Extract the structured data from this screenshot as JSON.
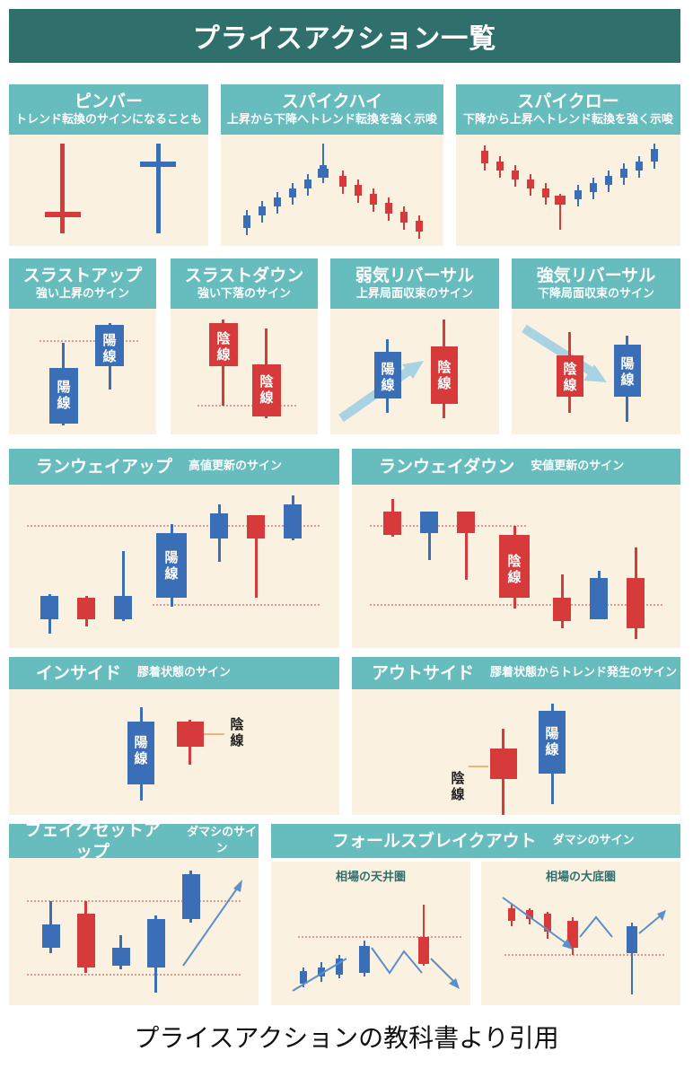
{
  "title": "プライスアクション一覧",
  "caption": "プライスアクションの教科書より引用",
  "colors": {
    "header_dark": "#2f6f6c",
    "header": "#67bcbd",
    "panel_bg": "#fbf1e1",
    "bull": "#3a6fb8",
    "bear": "#d63a3a",
    "arrow": "#a9d3e2"
  },
  "candle_labels": {
    "yang": "陽線",
    "yin": "陰線"
  },
  "panels": {
    "pinbar": {
      "title": "ピンバー",
      "subtitle": "トレンド転換のサインになることも"
    },
    "spike_high": {
      "title": "スパイクハイ",
      "subtitle": "上昇から下降へトレンド転換を強く示唆"
    },
    "spike_low": {
      "title": "スパイクロー",
      "subtitle": "下降から上昇へトレンド転換を強く示唆"
    },
    "thrust_up": {
      "title": "スラストアップ",
      "subtitle": "強い上昇のサイン"
    },
    "thrust_down": {
      "title": "スラストダウン",
      "subtitle": "強い下落のサイン"
    },
    "weak_reversal": {
      "title": "弱気リバーサル",
      "subtitle": "上昇局面収束のサイン"
    },
    "strong_reversal": {
      "title": "強気リバーサル",
      "subtitle": "下降局面収束のサイン"
    },
    "runaway_up": {
      "title": "ランウェイアップ",
      "subtitle": "高値更新のサイン"
    },
    "runaway_down": {
      "title": "ランウェイダウン",
      "subtitle": "安値更新のサイン"
    },
    "inside": {
      "title": "インサイド",
      "subtitle": "膠着状態のサイン"
    },
    "outside": {
      "title": "アウトサイド",
      "subtitle": "膠着状態からトレンド発生のサイン"
    },
    "fake_setup": {
      "title": "フェイクセットアップ",
      "subtitle": "ダマシのサイン"
    },
    "false_break": {
      "title": "フォールスブレイクアウト",
      "subtitle": "ダマシのサイン",
      "sub_top": "相場の天井圏",
      "sub_bottom": "相場の大底圏"
    }
  }
}
